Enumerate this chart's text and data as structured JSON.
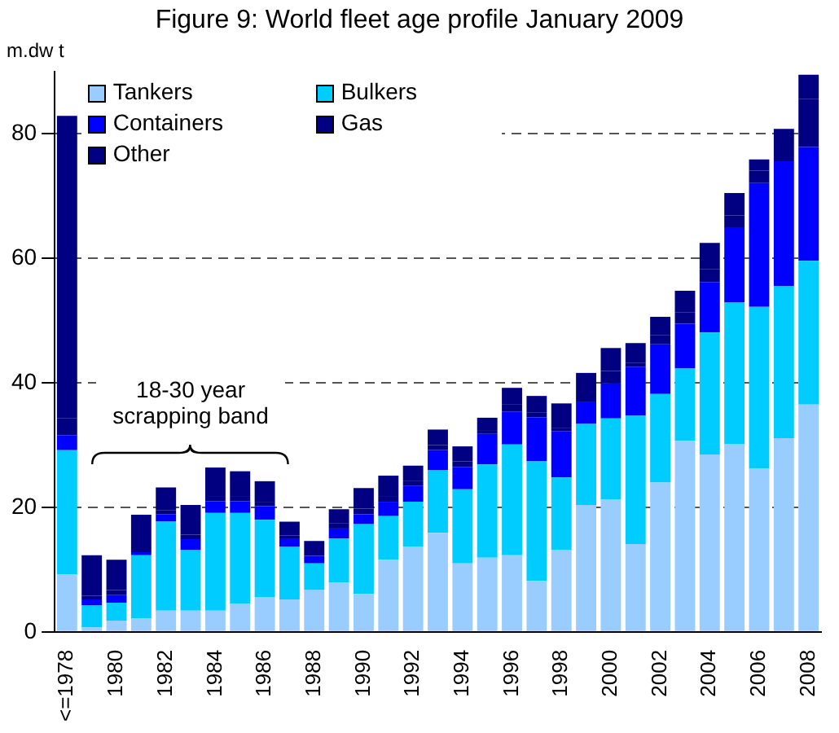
{
  "chart_data": {
    "type": "bar",
    "title": "Figure 9: World fleet age profile January 2009",
    "ylabel": "m.dw t",
    "annotations": [
      "18-30 year scrapping band"
    ],
    "categories": [
      "<=1978",
      null,
      "1980",
      null,
      "1982",
      null,
      "1984",
      null,
      "1986",
      null,
      "1988",
      null,
      "1990",
      null,
      "1992",
      null,
      "1994",
      null,
      "1996",
      null,
      "1998",
      null,
      "2000",
      null,
      "2002",
      null,
      "2004",
      null,
      "2006",
      null,
      "2008"
    ],
    "stacked": true,
    "ylim": [
      0,
      90
    ],
    "yticks": [
      0,
      20,
      40,
      60,
      80
    ],
    "grid": "y",
    "line_style": "dashed",
    "legend": "top left",
    "series": [
      {
        "name": "Tankers",
        "color": "#99ccff",
        "values": [
          9.2,
          0.7,
          1.8,
          2.2,
          3.4,
          3.4,
          3.4,
          4.5,
          5.6,
          5.2,
          6.7,
          7.9,
          6.1,
          11.6,
          13.7,
          15.9,
          11.0,
          11.9,
          12.3,
          8.2,
          13.2,
          20.4,
          21.3,
          14.1,
          24.0,
          30.7,
          28.5,
          30.2,
          26.2,
          31.1,
          36.5
        ]
      },
      {
        "name": "Bulkers",
        "color": "#00ccff",
        "values": [
          20.0,
          3.6,
          2.9,
          10.1,
          14.3,
          9.8,
          15.7,
          14.6,
          12.4,
          8.5,
          4.3,
          7.1,
          11.2,
          7.0,
          7.2,
          10.1,
          11.9,
          15.0,
          17.8,
          19.2,
          11.6,
          13.0,
          13.0,
          20.6,
          14.2,
          11.6,
          19.6,
          22.7,
          26.0,
          24.5,
          23.1
        ]
      },
      {
        "name": "Containers",
        "color": "#0000ff",
        "values": [
          2.4,
          0.9,
          1.2,
          0.5,
          1.2,
          1.7,
          1.9,
          1.9,
          2.2,
          1.2,
          1.2,
          1.6,
          1.6,
          2.3,
          2.6,
          3.2,
          3.6,
          4.9,
          5.3,
          7.1,
          7.4,
          3.6,
          5.6,
          7.9,
          8.0,
          7.2,
          8.1,
          12.1,
          19.9,
          20.0,
          18.3
        ]
      },
      {
        "name": "Gas",
        "color": "#000080",
        "values": [
          2.7,
          0.6,
          0.8,
          0.9,
          0.6,
          0.7,
          0.7,
          0.7,
          0.7,
          0.6,
          0.6,
          0.8,
          0.9,
          0.8,
          0.7,
          0.8,
          0.9,
          0.5,
          1.1,
          0.7,
          0.6,
          0.4,
          2.0,
          0.6,
          1.5,
          1.8,
          2.1,
          1.9,
          2.0,
          2.1,
          7.7
        ]
      },
      {
        "name": "Other",
        "color": "#000080",
        "values": [
          48.6,
          6.5,
          4.9,
          5.1,
          3.7,
          4.8,
          4.7,
          4.1,
          3.3,
          2.2,
          1.8,
          2.3,
          3.3,
          3.4,
          2.5,
          2.5,
          2.4,
          2.1,
          2.7,
          2.7,
          3.9,
          4.2,
          3.7,
          3.2,
          2.9,
          3.5,
          4.2,
          3.6,
          1.8,
          3.1,
          3.9
        ]
      }
    ]
  }
}
